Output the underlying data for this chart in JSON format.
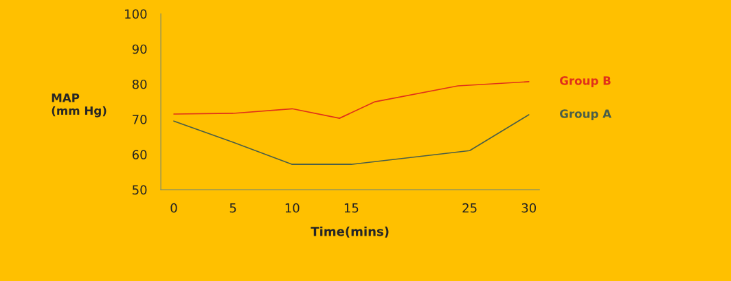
{
  "chart_data": {
    "type": "line",
    "xlabel": "Time(mins)",
    "ylabel": "MAP\n(mm Hg)",
    "xlim": [
      -1.1,
      30.9
    ],
    "xticks": [
      0,
      5,
      10,
      15,
      25,
      30
    ],
    "ylim": [
      50,
      100
    ],
    "yticks": [
      50,
      60,
      70,
      80,
      90,
      100
    ],
    "grid": false,
    "legend": false,
    "marker": "none",
    "line_style": "solid",
    "series": [
      {
        "name": "Group B",
        "color": "#e0301a",
        "x": [
          0,
          5,
          10,
          14,
          17,
          24,
          30
        ],
        "values": [
          71.5,
          71.7,
          73.0,
          70.3,
          75.0,
          79.5,
          80.7
        ]
      },
      {
        "name": "Group A",
        "color": "#4a5e48",
        "x": [
          0,
          5,
          10,
          15,
          25,
          30
        ],
        "values": [
          69.5,
          63.5,
          57.2,
          57.2,
          61.1,
          71.3
        ]
      }
    ]
  }
}
